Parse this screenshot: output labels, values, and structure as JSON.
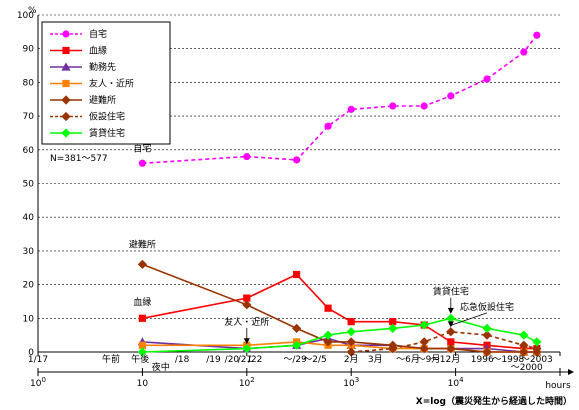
{
  "chart_data": {
    "type": "line",
    "x_scale": "log",
    "x_unit": "hours",
    "xlim": [
      1,
      100000
    ],
    "ylim": [
      0,
      100
    ],
    "y_unit": "%",
    "y_ticks": [
      0,
      10,
      20,
      30,
      40,
      50,
      60,
      70,
      80,
      90,
      100
    ],
    "x_decade_labels": [
      {
        "value": 1,
        "base": "10",
        "exp": "0"
      },
      {
        "value": 10,
        "base": "10",
        "exp": ""
      },
      {
        "value": 100,
        "base": "10",
        "exp": "2"
      },
      {
        "value": 1000,
        "base": "10",
        "exp": "3"
      },
      {
        "value": 10000,
        "base": "10",
        "exp": "4"
      }
    ],
    "x_axis_word": "hours",
    "xlabel": "X=log（震災発生から経過した時間）",
    "sample_note": "N=381～577",
    "time_labels_row1": [
      {
        "text": "1/17",
        "x": 1
      },
      {
        "text": "午前",
        "x": 5
      },
      {
        "text": "午後",
        "x": 9.5
      },
      {
        "text": "/18",
        "x": 24
      },
      {
        "text": "/19",
        "x": 48
      },
      {
        "text": "/20",
        "x": 72
      },
      {
        "text": "/21",
        "x": 96
      },
      {
        "text": "/22",
        "x": 120
      },
      {
        "text": "～/29",
        "x": 290
      },
      {
        "text": "～2/5",
        "x": 450
      },
      {
        "text": "2月",
        "x": 1000
      },
      {
        "text": "3月",
        "x": 1700
      },
      {
        "text": "～6月",
        "x": 3500
      },
      {
        "text": "～9月",
        "x": 5500
      },
      {
        "text": "～12月",
        "x": 8000
      },
      {
        "text": "1996",
        "x": 18000
      },
      {
        "text": "～1998",
        "x": 32000
      },
      {
        "text": "～2003",
        "x": 60000
      }
    ],
    "time_labels_row2": [
      {
        "text": "夜中",
        "x": 15
      },
      {
        "text": "～2000",
        "x": 48000
      }
    ],
    "series": [
      {
        "name": "自宅",
        "color": "#ff00ff",
        "marker": "circle",
        "dash": true,
        "x": [
          10,
          100,
          300,
          600,
          1000,
          2500,
          5000,
          9000,
          20000,
          45000,
          60000
        ],
        "y": [
          56,
          58,
          57,
          67,
          72,
          73,
          73,
          76,
          81,
          89,
          94
        ]
      },
      {
        "name": "血縁",
        "color": "#ff0000",
        "marker": "square",
        "dash": false,
        "x": [
          10,
          100,
          300,
          600,
          1000,
          2500,
          5000,
          9000,
          20000,
          45000,
          60000
        ],
        "y": [
          10,
          16,
          23,
          13,
          9,
          9,
          8,
          3,
          2,
          1,
          1
        ]
      },
      {
        "name": "勤務先",
        "color": "#7030a0",
        "marker": "triangle",
        "dash": false,
        "x": [
          10,
          100,
          300,
          600,
          1000,
          2500,
          5000,
          9000,
          20000,
          45000,
          60000
        ],
        "y": [
          3,
          1,
          2,
          4,
          2,
          2,
          1,
          1,
          1,
          0,
          0
        ]
      },
      {
        "name": "友人・近所",
        "color": "#ff8000",
        "marker": "square",
        "dash": false,
        "x": [
          10,
          100,
          300,
          600,
          1000,
          2500,
          5000,
          9000,
          20000,
          45000,
          60000
        ],
        "y": [
          2,
          2,
          3,
          2,
          2,
          1,
          1,
          1,
          0,
          0,
          0
        ]
      },
      {
        "name": "避難所",
        "color": "#993300",
        "marker": "diamond",
        "dash": false,
        "x": [
          10,
          100,
          300,
          600,
          1000,
          2500,
          5000,
          9000,
          20000,
          45000,
          60000
        ],
        "y": [
          26,
          14,
          7,
          3,
          3,
          2,
          1,
          1,
          0,
          0,
          0
        ]
      },
      {
        "name": "仮設住宅",
        "color": "#993300",
        "marker": "diamond",
        "dash": true,
        "x": [
          1000,
          2500,
          5000,
          9000,
          20000,
          45000,
          60000
        ],
        "y": [
          0,
          1,
          3,
          6,
          5,
          2,
          1
        ]
      },
      {
        "name": "賃貸住宅",
        "color": "#00ff00",
        "marker": "diamond",
        "dash": false,
        "x": [
          10,
          100,
          300,
          600,
          1000,
          2500,
          5000,
          9000,
          20000,
          45000,
          60000
        ],
        "y": [
          0,
          1,
          2,
          5,
          6,
          7,
          8,
          10,
          7,
          5,
          3
        ]
      }
    ],
    "annotations": [
      {
        "text": "自宅",
        "x": 10,
        "y": 59.5,
        "arrow": false
      },
      {
        "text": "避難所",
        "x": 10,
        "y": 31,
        "arrow": false
      },
      {
        "text": "血縁",
        "x": 10,
        "y": 14,
        "arrow": false
      },
      {
        "text": "友人・近所",
        "x": 100,
        "y": 8,
        "arrow": true,
        "tx": 100,
        "ty": 2
      },
      {
        "text": "賃貸住宅",
        "x": 9000,
        "y": 17,
        "arrow": true,
        "tx": 9000,
        "ty": 11
      },
      {
        "text": "応急仮設住宅",
        "x": 20000,
        "y": 12.5,
        "arrow": true,
        "tx": 9000,
        "ty": 7
      }
    ]
  }
}
